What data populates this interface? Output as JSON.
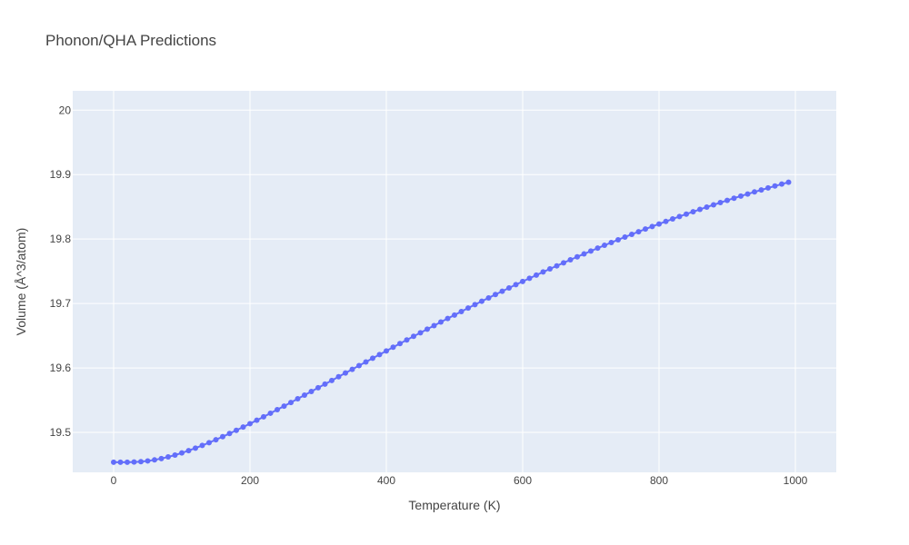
{
  "chart_data": {
    "type": "line",
    "title": "Phonon/QHA Predictions",
    "xlabel": "Temperature (K)",
    "ylabel": "Volume (Å^3/atom)",
    "xlim": [
      -60,
      1060
    ],
    "ylim": [
      19.438,
      20.03
    ],
    "xticks": [
      0,
      200,
      400,
      600,
      800,
      1000
    ],
    "yticks": [
      19.5,
      19.6,
      19.7,
      19.8,
      19.9,
      20
    ],
    "xtick_labels": [
      "0",
      "200",
      "400",
      "600",
      "800",
      "1000"
    ],
    "ytick_labels": [
      "19.5",
      "19.6",
      "19.7",
      "19.8",
      "19.9",
      "20"
    ],
    "grid": true,
    "series": [
      {
        "color": "#636efa",
        "marker": "circle",
        "x": [
          0,
          10,
          20,
          30,
          40,
          50,
          60,
          70,
          80,
          90,
          100,
          110,
          120,
          130,
          140,
          150,
          160,
          170,
          180,
          190,
          200,
          210,
          220,
          230,
          240,
          250,
          260,
          270,
          280,
          290,
          300,
          310,
          320,
          330,
          340,
          350,
          360,
          370,
          380,
          390,
          400,
          410,
          420,
          430,
          440,
          450,
          460,
          470,
          480,
          490,
          500,
          510,
          520,
          530,
          540,
          550,
          560,
          570,
          580,
          590,
          600,
          610,
          620,
          630,
          640,
          650,
          660,
          670,
          680,
          690,
          700,
          710,
          720,
          730,
          740,
          750,
          760,
          770,
          780,
          790,
          800,
          810,
          820,
          830,
          840,
          850,
          860,
          870,
          880,
          890,
          900,
          910,
          920,
          930,
          940,
          950,
          960,
          970,
          980,
          990
        ],
        "y": [
          19.4536,
          19.4536,
          19.4537,
          19.454,
          19.4546,
          19.4557,
          19.4573,
          19.4594,
          19.4619,
          19.4648,
          19.4681,
          19.4717,
          19.4756,
          19.4797,
          19.484,
          19.4886,
          19.4933,
          19.4982,
          19.5032,
          19.5083,
          19.5135,
          19.5188,
          19.5242,
          19.5297,
          19.5352,
          19.5408,
          19.5464,
          19.5521,
          19.5578,
          19.5635,
          19.5692,
          19.5749,
          19.5806,
          19.5864,
          19.5921,
          19.5978,
          19.6036,
          19.6093,
          19.615,
          19.6207,
          19.6264,
          19.6321,
          19.6378,
          19.6434,
          19.649,
          19.6546,
          19.6602,
          19.6657,
          19.6712,
          19.6767,
          19.6821,
          19.6875,
          19.6929,
          19.6982,
          19.7035,
          19.7087,
          19.7139,
          19.719,
          19.7241,
          19.7292,
          19.7342,
          19.7391,
          19.744,
          19.7489,
          19.7537,
          19.7584,
          19.7631,
          19.7678,
          19.7724,
          19.7769,
          19.7814,
          19.7859,
          19.7903,
          19.7946,
          19.7989,
          19.8031,
          19.8073,
          19.8114,
          19.8155,
          19.8195,
          19.8234,
          19.8273,
          19.8312,
          19.835,
          19.8387,
          19.8424,
          19.846,
          19.8496,
          19.8531,
          19.8566,
          19.86,
          19.8634,
          19.8667,
          19.8699,
          19.8731,
          19.8762,
          19.8793,
          19.8823,
          19.8853,
          19.8882
        ]
      }
    ]
  }
}
